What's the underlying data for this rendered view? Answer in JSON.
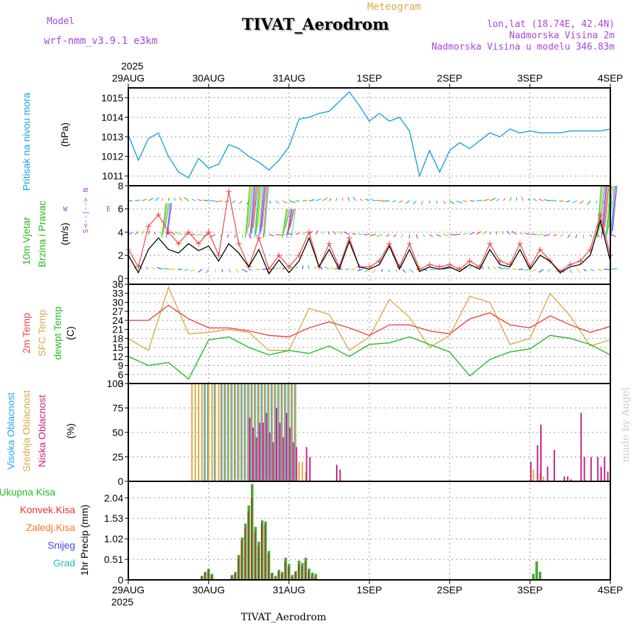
{
  "header": {
    "model_label": "Model",
    "model_name": "wrf-nmm_v3.9.1 e3km",
    "meteogram_label": "Meteogram",
    "title": "TIVAT_Aerodrom",
    "lonlat": "lon,lat (18.74E, 42.4N)",
    "altitude": "Nadmorska Visina 2m",
    "model_altitude": "Nadmorska Visina u modelu 346.83m",
    "footer_title": "TIVAT_Aerodrom",
    "credit": "made by Angel"
  },
  "colors": {
    "pressure": "#1aa3dd",
    "wind_label": "#22bb22",
    "temp2m": "#ee4444",
    "sfc": "#ddaa44",
    "dewpt": "#22bb22",
    "high_cloud": "#22aaee",
    "mid_cloud": "#ddaa44",
    "low_cloud": "#cc2288",
    "direction": "#aa44dd",
    "snow": "#4444ee",
    "hail": "#22bbbb",
    "conv": "#ee3333",
    "frozen": "#ff7722",
    "total": "#44aa33"
  },
  "chart_data": {
    "type": "meteogram",
    "time_axis": {
      "year": "2025",
      "labels": [
        "29AUG",
        "30AUG",
        "31AUG",
        "1SEP",
        "2SEP",
        "3SEP",
        "4SEP"
      ],
      "hours_span": 144
    },
    "panels": [
      {
        "id": "pressure",
        "labels": [
          "Pritisak na nivou mora"
        ],
        "unit": "(hPa)",
        "ylim": [
          1010.5,
          1015.5
        ],
        "ticks": [
          "1011",
          "1012",
          "1013",
          "1014",
          "1015"
        ],
        "series": [
          {
            "name": "Pritisak na nivou mora",
            "hours": [
              0,
              3,
              6,
              9,
              12,
              15,
              18,
              21,
              24,
              27,
              30,
              33,
              36,
              39,
              42,
              45,
              48,
              51,
              54,
              57,
              60,
              63,
              66,
              69,
              72,
              75,
              78,
              81,
              84,
              87,
              90,
              93,
              96,
              99,
              102,
              105,
              108,
              111,
              114,
              117,
              120,
              123,
              126,
              129,
              132,
              135,
              138,
              141,
              144
            ],
            "values": [
              1013.1,
              1011.8,
              1012.9,
              1013.2,
              1012.0,
              1011.2,
              1010.9,
              1011.9,
              1011.4,
              1011.6,
              1012.6,
              1012.4,
              1012.0,
              1011.7,
              1011.3,
              1011.8,
              1012.5,
              1013.9,
              1014.0,
              1014.2,
              1014.3,
              1014.8,
              1015.3,
              1014.6,
              1013.8,
              1014.2,
              1013.8,
              1014.0,
              1013.3,
              1011.0,
              1012.3,
              1011.2,
              1012.3,
              1012.7,
              1012.4,
              1012.8,
              1013.2,
              1013.0,
              1013.4,
              1013.2,
              1013.3,
              1013.2,
              1013.2,
              1013.2,
              1013.3,
              1013.3,
              1013.3,
              1013.3,
              1013.4
            ]
          }
        ]
      },
      {
        "id": "wind",
        "labels": [
          "10m Vjetar",
          "Brzina i Pravac"
        ],
        "unit": "(m/s)",
        "ylim": [
          -0.5,
          8
        ],
        "ticks": [
          "0",
          "2",
          "4",
          "6",
          "8"
        ],
        "direction_legend": [
          "N",
          "<--|-->",
          "W",
          "E",
          "S"
        ],
        "series": [
          {
            "name": "speed",
            "hours": [
              0,
              3,
              6,
              9,
              12,
              15,
              18,
              21,
              24,
              27,
              30,
              33,
              36,
              39,
              42,
              45,
              48,
              51,
              54,
              57,
              60,
              63,
              66,
              69,
              72,
              75,
              78,
              81,
              84,
              87,
              90,
              93,
              96,
              99,
              102,
              105,
              108,
              111,
              114,
              117,
              120,
              123,
              126,
              129,
              132,
              135,
              138,
              141,
              144
            ],
            "values": [
              2.0,
              0.5,
              2.5,
              3.5,
              2.5,
              2.2,
              3.0,
              2.4,
              2.8,
              1.5,
              3.0,
              2.2,
              1.0,
              2.5,
              0.4,
              1.6,
              0.5,
              1.5,
              3.5,
              1.0,
              2.5,
              0.8,
              3.2,
              1.0,
              0.8,
              1.2,
              2.8,
              0.8,
              2.5,
              0.6,
              1.0,
              0.8,
              1.0,
              0.6,
              1.2,
              0.8,
              2.5,
              1.2,
              1.0,
              2.5,
              0.8,
              2.0,
              1.5,
              0.5,
              1.0,
              1.2,
              2.0,
              5.0,
              1.5
            ]
          },
          {
            "name": "gust",
            "hours": [
              0,
              3,
              6,
              9,
              12,
              15,
              18,
              21,
              24,
              27,
              30,
              33,
              36,
              39,
              42,
              45,
              48,
              51,
              54,
              57,
              60,
              63,
              66,
              69,
              72,
              75,
              78,
              81,
              84,
              87,
              90,
              93,
              96,
              99,
              102,
              105,
              108,
              111,
              114,
              117,
              120,
              123,
              126,
              129,
              132,
              135,
              138,
              141,
              144
            ],
            "values": [
              2.5,
              1.0,
              4.5,
              5.5,
              4.0,
              3.0,
              4.0,
              3.0,
              4.0,
              2.0,
              7.5,
              3.0,
              1.0,
              3.5,
              0.8,
              2.0,
              1.0,
              2.0,
              4.0,
              1.0,
              3.0,
              1.0,
              3.5,
              1.0,
              1.0,
              1.5,
              3.0,
              1.0,
              3.0,
              0.8,
              1.2,
              1.0,
              1.2,
              0.8,
              1.5,
              1.0,
              3.0,
              1.5,
              1.2,
              3.0,
              1.0,
              2.5,
              1.5,
              0.6,
              1.2,
              1.5,
              2.5,
              5.5,
              2.0
            ]
          }
        ]
      },
      {
        "id": "temperature",
        "labels": [
          "2m Temp",
          "SFC Temp",
          "dewpt Temp"
        ],
        "unit": "(C)",
        "ylim": [
          3,
          36
        ],
        "ticks": [
          "3",
          "6",
          "9",
          "12",
          "15",
          "18",
          "21",
          "24",
          "27",
          "30",
          "33",
          "36"
        ],
        "series": [
          {
            "name": "2m Temp",
            "hours": [
              0,
              6,
              12,
              18,
              24,
              30,
              36,
              42,
              48,
              54,
              60,
              66,
              72,
              78,
              84,
              90,
              96,
              102,
              108,
              114,
              120,
              126,
              132,
              138,
              144
            ],
            "values": [
              24.0,
              24.0,
              29.0,
              24.5,
              21.5,
              21.5,
              20.5,
              19.0,
              18.5,
              21.5,
              23.5,
              21.5,
              19.0,
              22.5,
              22.5,
              20.5,
              19.5,
              24.5,
              26.5,
              22.5,
              21.5,
              25.5,
              22.5,
              20.0,
              22.0
            ]
          },
          {
            "name": "SFC Temp",
            "hours": [
              0,
              6,
              12,
              18,
              24,
              30,
              36,
              42,
              48,
              54,
              60,
              66,
              72,
              78,
              84,
              90,
              96,
              102,
              108,
              114,
              120,
              126,
              132,
              138,
              144
            ],
            "values": [
              18.0,
              14.0,
              35.0,
              19.5,
              20.0,
              21.0,
              20.0,
              14.0,
              14.0,
              28.0,
              26.0,
              14.0,
              18.5,
              31.0,
              25.0,
              15.0,
              19.0,
              32.0,
              30.0,
              16.0,
              18.0,
              33.0,
              25.5,
              15.5,
              17.5
            ]
          },
          {
            "name": "dewpt Temp",
            "hours": [
              0,
              6,
              12,
              18,
              24,
              30,
              36,
              42,
              48,
              54,
              60,
              66,
              72,
              78,
              84,
              90,
              96,
              102,
              108,
              114,
              120,
              126,
              132,
              138,
              144
            ],
            "values": [
              12.0,
              9.0,
              10.0,
              4.5,
              17.5,
              18.5,
              15.0,
              12.5,
              14.0,
              13.0,
              15.5,
              12.0,
              16.0,
              16.5,
              18.5,
              16.0,
              13.5,
              5.5,
              11.0,
              13.5,
              14.5,
              19.0,
              18.0,
              16.0,
              12.5
            ]
          }
        ]
      },
      {
        "id": "clouds",
        "labels": [
          "Visoka Oblacnost",
          "Srednja Oblacnost",
          "Niska Oblacnost"
        ],
        "unit": "(%)",
        "ylim": [
          0,
          100
        ],
        "ticks": [
          "0",
          "25",
          "50",
          "75",
          "100"
        ],
        "series": [
          {
            "name": "Visoka Oblacnost",
            "hours": [
              23,
              24,
              26,
              28,
              29,
              30,
              31,
              32,
              33,
              34,
              35,
              36,
              37,
              38,
              39,
              40,
              41,
              42,
              43,
              44,
              45,
              46,
              47,
              48,
              49,
              50
            ],
            "values": [
              100,
              100,
              100,
              100,
              100,
              100,
              100,
              100,
              100,
              100,
              100,
              100,
              100,
              100,
              100,
              100,
              100,
              100,
              100,
              100,
              100,
              100,
              100,
              100,
              100,
              100
            ]
          },
          {
            "name": "Srednja Oblacnost",
            "hours": [
              19,
              20,
              21,
              22,
              23,
              24,
              25,
              26,
              27,
              28,
              29,
              30,
              31,
              32,
              33,
              34,
              35,
              36,
              37,
              38,
              39,
              40,
              41,
              42,
              43,
              44,
              45,
              46,
              47,
              48,
              49,
              50,
              51,
              52,
              53,
              121,
              123,
              124
            ],
            "values": [
              100,
              100,
              100,
              100,
              100,
              100,
              100,
              100,
              100,
              100,
              100,
              100,
              100,
              100,
              100,
              100,
              100,
              100,
              100,
              100,
              100,
              100,
              100,
              100,
              100,
              100,
              100,
              100,
              100,
              100,
              100,
              100,
              20,
              20,
              10,
              12,
              8,
              5
            ]
          },
          {
            "name": "Niska Oblacnost",
            "hours": [
              36,
              37,
              38,
              39,
              40,
              41,
              42,
              43,
              44,
              45,
              46,
              47,
              48,
              49,
              50,
              53,
              54,
              62,
              63,
              120,
              122,
              123,
              125,
              127,
              130,
              131,
              132,
              135,
              136,
              138,
              140,
              141,
              142,
              143
            ],
            "values": [
              65,
              55,
              45,
              60,
              60,
              70,
              50,
              40,
              75,
              60,
              45,
              70,
              55,
              40,
              35,
              35,
              25,
              17,
              12,
              20,
              37,
              58,
              15,
              32,
              5,
              5,
              2,
              70,
              25,
              25,
              25,
              15,
              25,
              10
            ]
          }
        ]
      },
      {
        "id": "precip",
        "labels": [
          "Ukupna Kisa",
          "Konvek.Kisa",
          "Zaledj.Kisa",
          "Snijeg",
          "Grad"
        ],
        "ylabel": "1hr Precip (mm)",
        "ylim": [
          0,
          2.45
        ],
        "ticks": [
          "0",
          "0.51",
          "1.02",
          "1.53",
          "2.04"
        ],
        "series": [
          {
            "name": "Ukupna Kisa",
            "hours": [
              22,
              23,
              24,
              25,
              31,
              32,
              33,
              34,
              35,
              36,
              37,
              38,
              39,
              40,
              41,
              42,
              43,
              44,
              45,
              46,
              47,
              48,
              49,
              50,
              51,
              52,
              53,
              54,
              55,
              56,
              57,
              121,
              122,
              123
            ],
            "values": [
              0.1,
              0.2,
              0.28,
              0.15,
              0.12,
              0.2,
              0.62,
              1.05,
              1.4,
              1.85,
              2.38,
              1.32,
              0.95,
              1.48,
              1.45,
              0.72,
              0.18,
              0.1,
              0.25,
              0.2,
              0.55,
              0.4,
              0.12,
              0.22,
              0.48,
              0.42,
              0.55,
              0.28,
              0.18,
              0.15,
              0.02,
              0.15,
              0.46,
              0.2
            ]
          },
          {
            "name": "Konvek.Kisa",
            "hours": [
              22,
              23,
              24,
              25,
              31,
              32,
              33,
              34,
              35,
              36,
              37,
              38,
              39,
              40,
              41,
              42,
              43,
              44,
              45,
              46,
              47,
              48,
              49,
              50,
              51,
              52,
              53,
              54,
              55,
              56,
              57,
              121,
              122,
              123
            ],
            "values": [
              0.08,
              0.18,
              0.25,
              0.12,
              0.1,
              0.15,
              0.55,
              0.98,
              1.3,
              1.7,
              2.05,
              1.2,
              0.85,
              1.4,
              1.38,
              0.65,
              0.15,
              0.05,
              0.2,
              0.15,
              0.45,
              0.32,
              0.1,
              0.18,
              0.4,
              0.35,
              0.45,
              0.2,
              0.12,
              0.08,
              0.0,
              0.0,
              0.0,
              0.0
            ]
          }
        ]
      }
    ]
  }
}
